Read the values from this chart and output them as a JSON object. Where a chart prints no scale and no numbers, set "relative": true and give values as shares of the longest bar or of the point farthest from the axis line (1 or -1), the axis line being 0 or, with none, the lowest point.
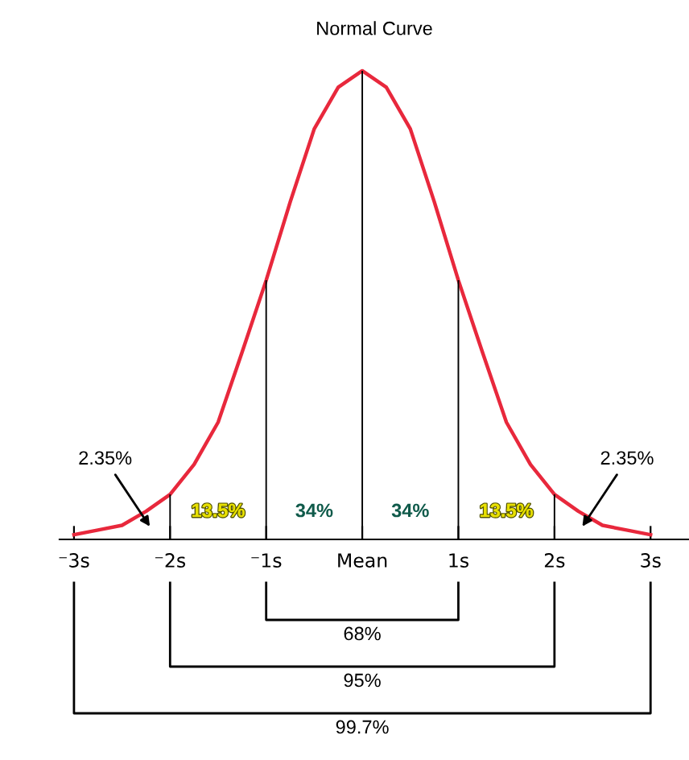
{
  "chart_data": {
    "type": "line",
    "title": "Normal Curve",
    "relative": true,
    "xlim": [
      -3.15,
      3.4
    ],
    "xticks": [
      {
        "value": -3,
        "label": "⁻3s"
      },
      {
        "value": -2,
        "label": "⁻2s"
      },
      {
        "value": -1,
        "label": "⁻1s"
      },
      {
        "value": 0,
        "label": "Mean"
      },
      {
        "value": 1,
        "label": "1s"
      },
      {
        "value": 2,
        "label": "2s"
      },
      {
        "value": 3,
        "label": "3s"
      }
    ],
    "tick_labels": "x",
    "series": [
      {
        "color": "#e8283c",
        "x": [
          -3,
          -2.75,
          -2.5,
          -2.25,
          -2,
          -1.75,
          -1.5,
          -1.25,
          -1,
          -0.75,
          -0.5,
          -0.25,
          0,
          0.25,
          0.5,
          0.75,
          1,
          1.25,
          1.5,
          1.75,
          2,
          2.25,
          2.5,
          2.75,
          3
        ],
        "values": [
          0.01,
          0.02,
          0.03,
          0.06,
          0.096,
          0.16,
          0.25,
          0.4,
          0.553,
          0.72,
          0.876,
          0.965,
          1,
          0.965,
          0.876,
          0.72,
          0.553,
          0.4,
          0.25,
          0.16,
          0.096,
          0.06,
          0.03,
          0.02,
          0.01
        ]
      },
      {
        "type": "bar",
        "color": "#000000",
        "x": [
          -2,
          -1,
          0,
          1,
          2
        ],
        "values": [
          0.096,
          0.553,
          1,
          0.553,
          0.096
        ]
      }
    ],
    "annotations": [
      "13.5%",
      "34%",
      "34%",
      "13.5%",
      "2.35%",
      "2.35%",
      "68%",
      "95%",
      "99.7%"
    ]
  }
}
